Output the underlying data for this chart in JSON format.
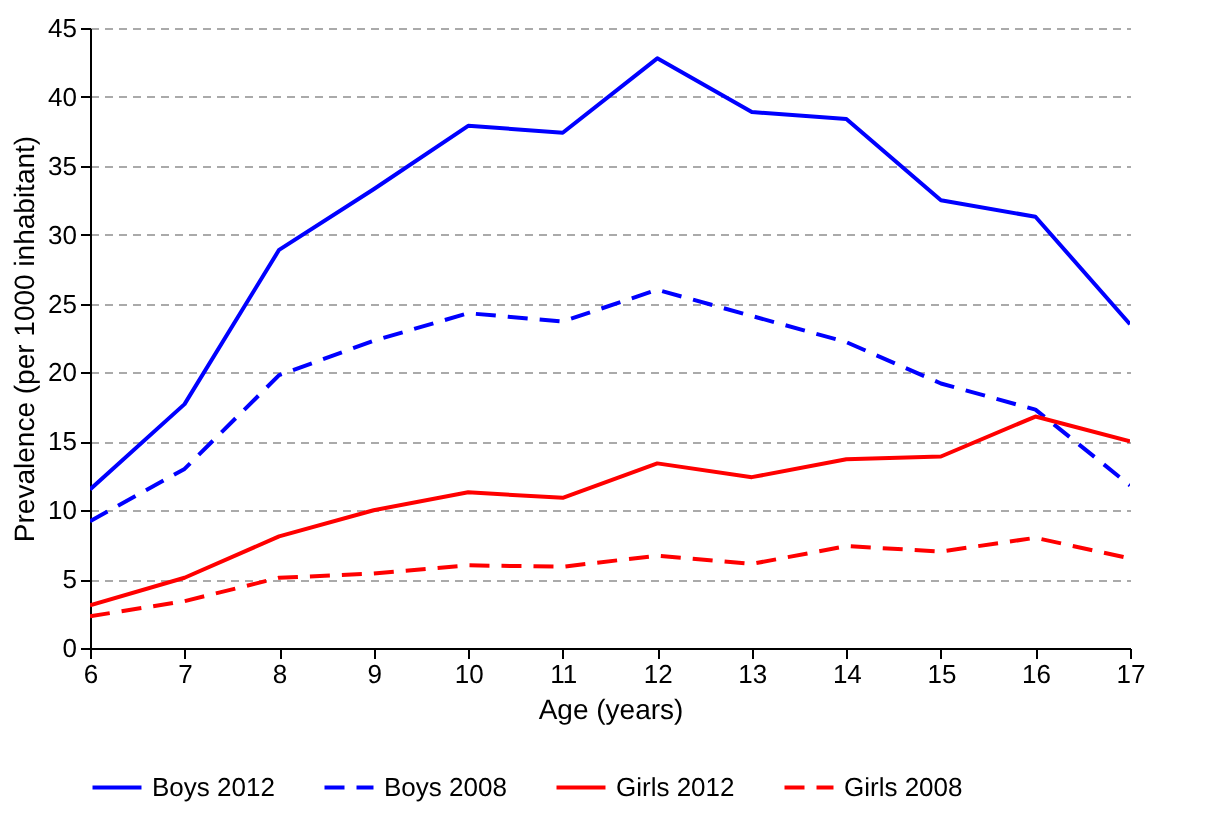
{
  "chart_data": {
    "type": "line",
    "xlabel": "Age (years)",
    "ylabel": "Prevalence (per 1000 inhabitant)",
    "x": [
      6,
      7,
      8,
      9,
      10,
      11,
      12,
      13,
      14,
      15,
      16,
      17
    ],
    "xlim": [
      6,
      17
    ],
    "xticks": [
      6,
      7,
      8,
      9,
      10,
      11,
      12,
      13,
      14,
      15,
      16,
      17
    ],
    "ylim": [
      0,
      45
    ],
    "yticks": [
      0,
      5,
      10,
      15,
      20,
      25,
      30,
      35,
      40,
      45
    ],
    "grid": "y",
    "legend": "bottom",
    "marker": "none",
    "series": [
      {
        "name": "Boys 2012",
        "color": "#0000ff",
        "line_style": "solid",
        "values": [
          11.5,
          17.7,
          28.9,
          33.3,
          37.9,
          37.4,
          42.8,
          38.9,
          38.4,
          32.5,
          31.3,
          23.5
        ]
      },
      {
        "name": "Boys 2008",
        "color": "#0000ff",
        "line_style": "dashed",
        "values": [
          9.2,
          13,
          19.8,
          22.3,
          24.3,
          23.7,
          26,
          24.1,
          22.2,
          19.2,
          17.3,
          11.8
        ]
      },
      {
        "name": "Girls 2012",
        "color": "#ff0000",
        "line_style": "solid",
        "values": [
          3.1,
          5.1,
          8.1,
          10,
          11.3,
          10.9,
          13.4,
          12.4,
          13.7,
          13.9,
          16.8,
          15
        ]
      },
      {
        "name": "Girls 2008",
        "color": "#ff0000",
        "line_style": "dashed",
        "values": [
          2.3,
          3.4,
          5.1,
          5.4,
          6,
          5.9,
          6.7,
          6.1,
          7.4,
          7,
          8,
          6.5
        ]
      }
    ]
  }
}
